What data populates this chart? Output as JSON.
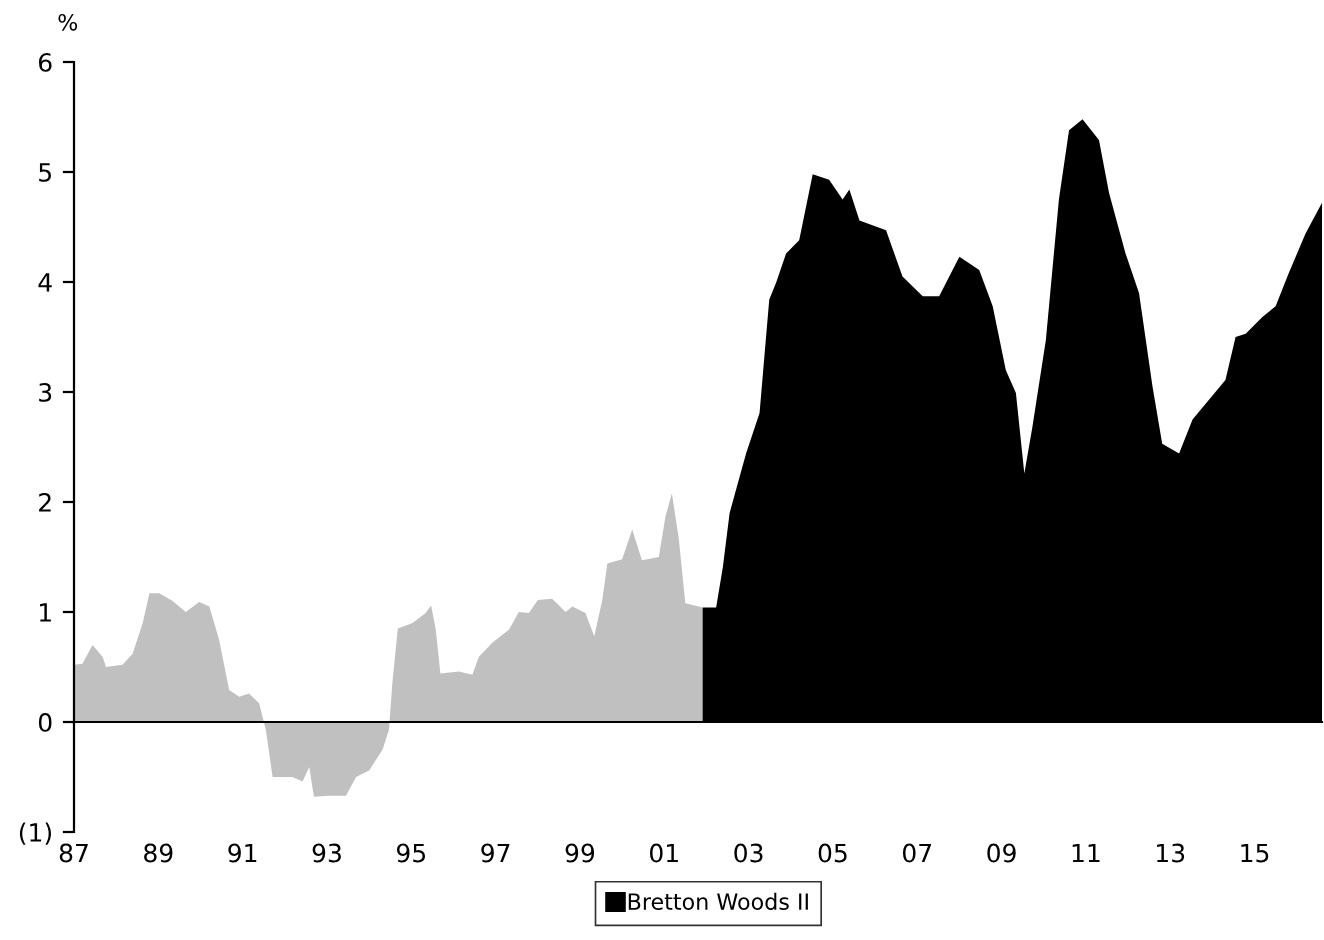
{
  "chart_data": {
    "type": "area",
    "ylabel": "%",
    "xlim": [
      1987,
      2016.6
    ],
    "ylim": [
      -1,
      6
    ],
    "xticks": [
      {
        "value": 1987,
        "label": "87"
      },
      {
        "value": 1989,
        "label": "89"
      },
      {
        "value": 1991,
        "label": "91"
      },
      {
        "value": 1993,
        "label": "93"
      },
      {
        "value": 1995,
        "label": "95"
      },
      {
        "value": 1997,
        "label": "97"
      },
      {
        "value": 1999,
        "label": "99"
      },
      {
        "value": 2001,
        "label": "01"
      },
      {
        "value": 2003,
        "label": "03"
      },
      {
        "value": 2005,
        "label": "05"
      },
      {
        "value": 2007,
        "label": "07"
      },
      {
        "value": 2009,
        "label": "09"
      },
      {
        "value": 2011,
        "label": "11"
      },
      {
        "value": 2013,
        "label": "13"
      },
      {
        "value": 2015,
        "label": "15"
      }
    ],
    "yticks": [
      {
        "value": -1,
        "label": "(1)"
      },
      0,
      1,
      2,
      3,
      4,
      5,
      6
    ],
    "legend": "bottom",
    "series": [
      {
        "color": "#c0c0c0",
        "x": [
          1987.0,
          1987.2,
          1987.44,
          1987.68,
          1987.76,
          1988.15,
          1988.39,
          1988.63,
          1988.79,
          1989.02,
          1989.34,
          1989.65,
          1989.97,
          1990.21,
          1990.44,
          1990.68,
          1990.92,
          1991.15,
          1991.39,
          1991.55,
          1991.71,
          1992.18,
          1992.42,
          1992.58,
          1992.69,
          1993.05,
          1993.45,
          1993.69,
          1994.0,
          1994.32,
          1994.47,
          1994.55,
          1994.68,
          1995.03,
          1995.34,
          1995.47,
          1995.58,
          1995.69,
          1996.13,
          1996.45,
          1996.6,
          1996.92,
          1997.32,
          1997.55,
          1997.79,
          1998.0,
          1998.34,
          1998.66,
          1998.82,
          1999.13,
          1999.34,
          1999.53,
          1999.65,
          2000.0,
          2000.24,
          2000.47,
          2000.87,
          2001.03,
          2001.18,
          2001.34,
          2001.5,
          2001.91
        ],
        "values": [
          0.52,
          0.53,
          0.7,
          0.59,
          0.5,
          0.52,
          0.62,
          0.9,
          1.17,
          1.17,
          1.1,
          1.0,
          1.09,
          1.05,
          0.75,
          0.29,
          0.23,
          0.26,
          0.17,
          -0.07,
          -0.5,
          -0.5,
          -0.54,
          -0.41,
          -0.68,
          -0.67,
          -0.67,
          -0.5,
          -0.44,
          -0.25,
          -0.07,
          0.35,
          0.85,
          0.9,
          0.99,
          1.06,
          0.84,
          0.44,
          0.46,
          0.43,
          0.59,
          0.72,
          0.84,
          1.0,
          0.99,
          1.11,
          1.12,
          1.0,
          1.05,
          0.99,
          0.78,
          1.11,
          1.44,
          1.48,
          1.75,
          1.47,
          1.5,
          1.87,
          2.08,
          1.68,
          1.08,
          1.04
        ]
      },
      {
        "name": "Bretton Woods II",
        "color": "#000000",
        "x": [
          2001.91,
          2002.23,
          2002.39,
          2002.55,
          2002.94,
          2003.26,
          2003.49,
          2003.65,
          2003.89,
          2004.2,
          2004.52,
          2004.91,
          2005.23,
          2005.39,
          2005.63,
          2006.26,
          2006.65,
          2007.13,
          2007.52,
          2008.0,
          2008.47,
          2008.79,
          2009.1,
          2009.34,
          2009.54,
          2009.73,
          2010.05,
          2010.36,
          2010.6,
          2010.92,
          2011.31,
          2011.55,
          2011.94,
          2012.26,
          2012.58,
          2012.81,
          2013.21,
          2013.53,
          2013.92,
          2014.31,
          2014.55,
          2014.79,
          2015.18,
          2015.5,
          2015.81,
          2016.21,
          2016.6
        ],
        "values": [
          1.04,
          1.04,
          1.41,
          1.9,
          2.44,
          2.81,
          3.84,
          3.99,
          4.26,
          4.38,
          4.98,
          4.93,
          4.75,
          4.84,
          4.56,
          4.47,
          4.05,
          3.87,
          3.87,
          4.23,
          4.11,
          3.78,
          3.2,
          2.99,
          2.26,
          2.68,
          3.47,
          4.75,
          5.38,
          5.48,
          5.29,
          4.81,
          4.26,
          3.9,
          3.05,
          2.53,
          2.44,
          2.75,
          2.93,
          3.11,
          3.5,
          3.53,
          3.68,
          3.78,
          4.08,
          4.44,
          4.72
        ]
      }
    ]
  }
}
